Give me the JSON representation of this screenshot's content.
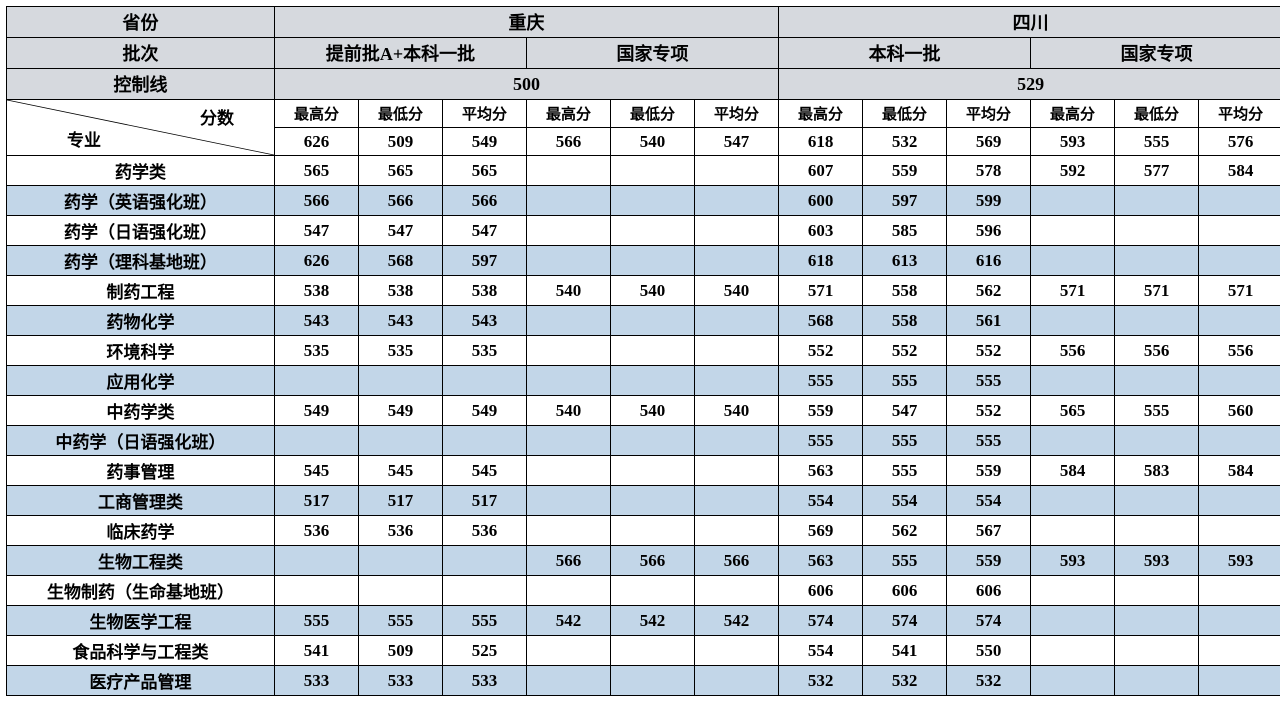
{
  "colors": {
    "header_bg": "#d6d9de",
    "stripe_blue": "#c2d6e8",
    "stripe_white": "#ffffff",
    "border": "#000000"
  },
  "headers": {
    "province": "省份",
    "batch": "批次",
    "control_line": "控制线",
    "score": "分数",
    "major": "专业",
    "max": "最高分",
    "min": "最低分",
    "avg": "平均分"
  },
  "provinces": [
    "重庆",
    "四川"
  ],
  "batches": [
    "提前批A+本科一批",
    "国家专项",
    "本科一批",
    "国家专项"
  ],
  "control_lines": [
    "500",
    "529"
  ],
  "summary_row": [
    "626",
    "509",
    "549",
    "566",
    "540",
    "547",
    "618",
    "532",
    "569",
    "593",
    "555",
    "576"
  ],
  "majors": [
    {
      "name": "药学类",
      "v": [
        "565",
        "565",
        "565",
        "",
        "",
        "",
        "607",
        "559",
        "578",
        "592",
        "577",
        "584"
      ]
    },
    {
      "name": "药学（英语强化班）",
      "v": [
        "566",
        "566",
        "566",
        "",
        "",
        "",
        "600",
        "597",
        "599",
        "",
        "",
        ""
      ]
    },
    {
      "name": "药学（日语强化班）",
      "v": [
        "547",
        "547",
        "547",
        "",
        "",
        "",
        "603",
        "585",
        "596",
        "",
        "",
        ""
      ]
    },
    {
      "name": "药学（理科基地班）",
      "v": [
        "626",
        "568",
        "597",
        "",
        "",
        "",
        "618",
        "613",
        "616",
        "",
        "",
        ""
      ]
    },
    {
      "name": "制药工程",
      "v": [
        "538",
        "538",
        "538",
        "540",
        "540",
        "540",
        "571",
        "558",
        "562",
        "571",
        "571",
        "571"
      ]
    },
    {
      "name": "药物化学",
      "v": [
        "543",
        "543",
        "543",
        "",
        "",
        "",
        "568",
        "558",
        "561",
        "",
        "",
        ""
      ]
    },
    {
      "name": "环境科学",
      "v": [
        "535",
        "535",
        "535",
        "",
        "",
        "",
        "552",
        "552",
        "552",
        "556",
        "556",
        "556"
      ]
    },
    {
      "name": "应用化学",
      "v": [
        "",
        "",
        "",
        "",
        "",
        "",
        "555",
        "555",
        "555",
        "",
        "",
        ""
      ]
    },
    {
      "name": "中药学类",
      "v": [
        "549",
        "549",
        "549",
        "540",
        "540",
        "540",
        "559",
        "547",
        "552",
        "565",
        "555",
        "560"
      ]
    },
    {
      "name": "中药学（日语强化班）",
      "v": [
        "",
        "",
        "",
        "",
        "",
        "",
        "555",
        "555",
        "555",
        "",
        "",
        ""
      ]
    },
    {
      "name": "药事管理",
      "v": [
        "545",
        "545",
        "545",
        "",
        "",
        "",
        "563",
        "555",
        "559",
        "584",
        "583",
        "584"
      ]
    },
    {
      "name": "工商管理类",
      "v": [
        "517",
        "517",
        "517",
        "",
        "",
        "",
        "554",
        "554",
        "554",
        "",
        "",
        ""
      ]
    },
    {
      "name": "临床药学",
      "v": [
        "536",
        "536",
        "536",
        "",
        "",
        "",
        "569",
        "562",
        "567",
        "",
        "",
        ""
      ]
    },
    {
      "name": "生物工程类",
      "v": [
        "",
        "",
        "",
        "566",
        "566",
        "566",
        "563",
        "555",
        "559",
        "593",
        "593",
        "593"
      ]
    },
    {
      "name": "生物制药（生命基地班）",
      "v": [
        "",
        "",
        "",
        "",
        "",
        "",
        "606",
        "606",
        "606",
        "",
        "",
        ""
      ]
    },
    {
      "name": "生物医学工程",
      "v": [
        "555",
        "555",
        "555",
        "542",
        "542",
        "542",
        "574",
        "574",
        "574",
        "",
        "",
        ""
      ]
    },
    {
      "name": "食品科学与工程类",
      "v": [
        "541",
        "509",
        "525",
        "",
        "",
        "",
        "554",
        "541",
        "550",
        "",
        "",
        ""
      ]
    },
    {
      "name": "医疗产品管理",
      "v": [
        "533",
        "533",
        "533",
        "",
        "",
        "",
        "532",
        "532",
        "532",
        "",
        "",
        ""
      ]
    }
  ]
}
